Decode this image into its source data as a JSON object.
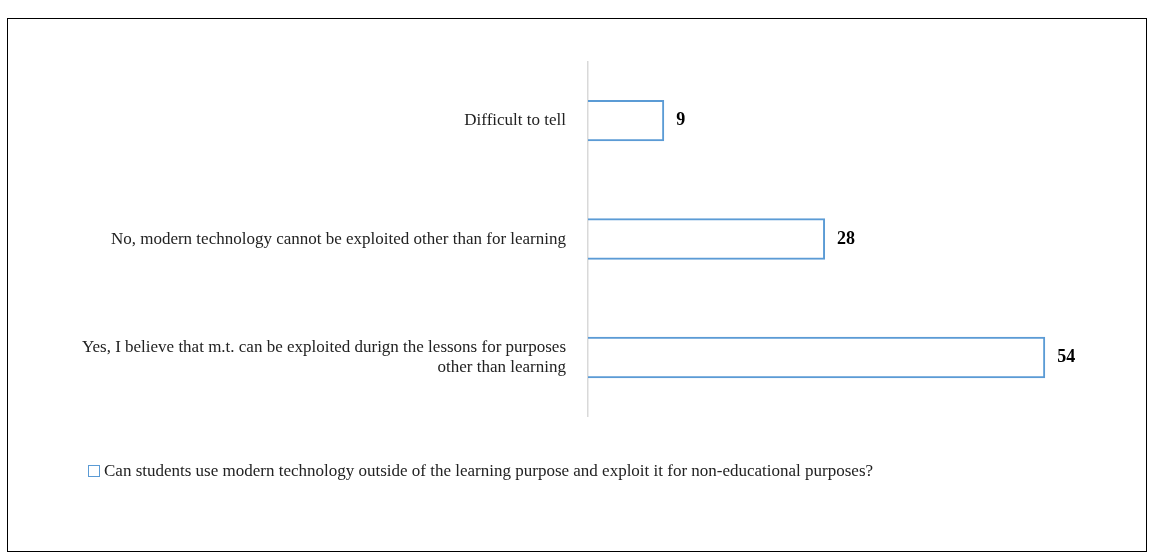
{
  "chart_data": {
    "type": "bar",
    "orientation": "horizontal",
    "categories": [
      "Difficult to tell",
      "No, modern technology cannot be exploited other than for learning",
      "Yes, I believe that m.t. can be exploited durign the lessons for purposes other than learning"
    ],
    "series": [
      {
        "name": "Can students use modern technology outside of the learning purpose and exploit it for non-educational purposes?",
        "color": "#5b9bd5",
        "values": [
          9,
          28,
          54
        ]
      }
    ],
    "data_labels": true,
    "legend": "bottom"
  }
}
